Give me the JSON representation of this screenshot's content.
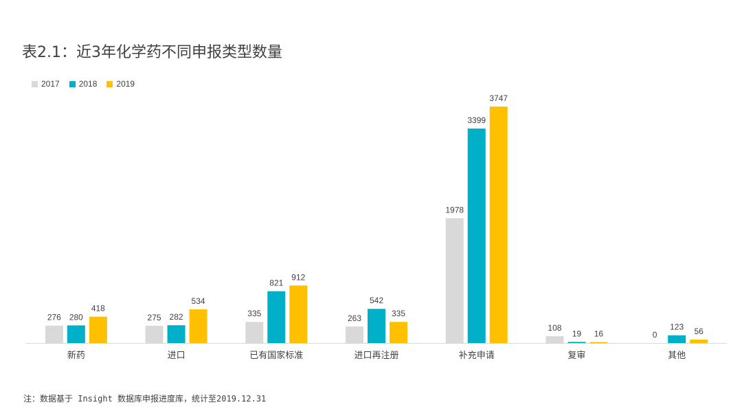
{
  "chart_data": {
    "type": "bar",
    "title": "表2.1：近3年化学药不同申报类型数量",
    "categories": [
      "新药",
      "进口",
      "已有国家标准",
      "进口再注册",
      "补充申请",
      "复审",
      "其他"
    ],
    "series": [
      {
        "name": "2017",
        "color": "#d9d9d9",
        "values": [
          276,
          275,
          335,
          263,
          1978,
          108,
          0
        ]
      },
      {
        "name": "2018",
        "color": "#00b0c8",
        "values": [
          280,
          282,
          821,
          542,
          3399,
          19,
          123
        ]
      },
      {
        "name": "2019",
        "color": "#ffc000",
        "values": [
          418,
          534,
          912,
          335,
          3747,
          16,
          56
        ]
      }
    ],
    "ylim": [
      0,
      4000
    ],
    "legend": "top-left",
    "grid": false
  },
  "note": "注：数据基于 Insight 数据库申报进度库，统计至2019.12.31"
}
